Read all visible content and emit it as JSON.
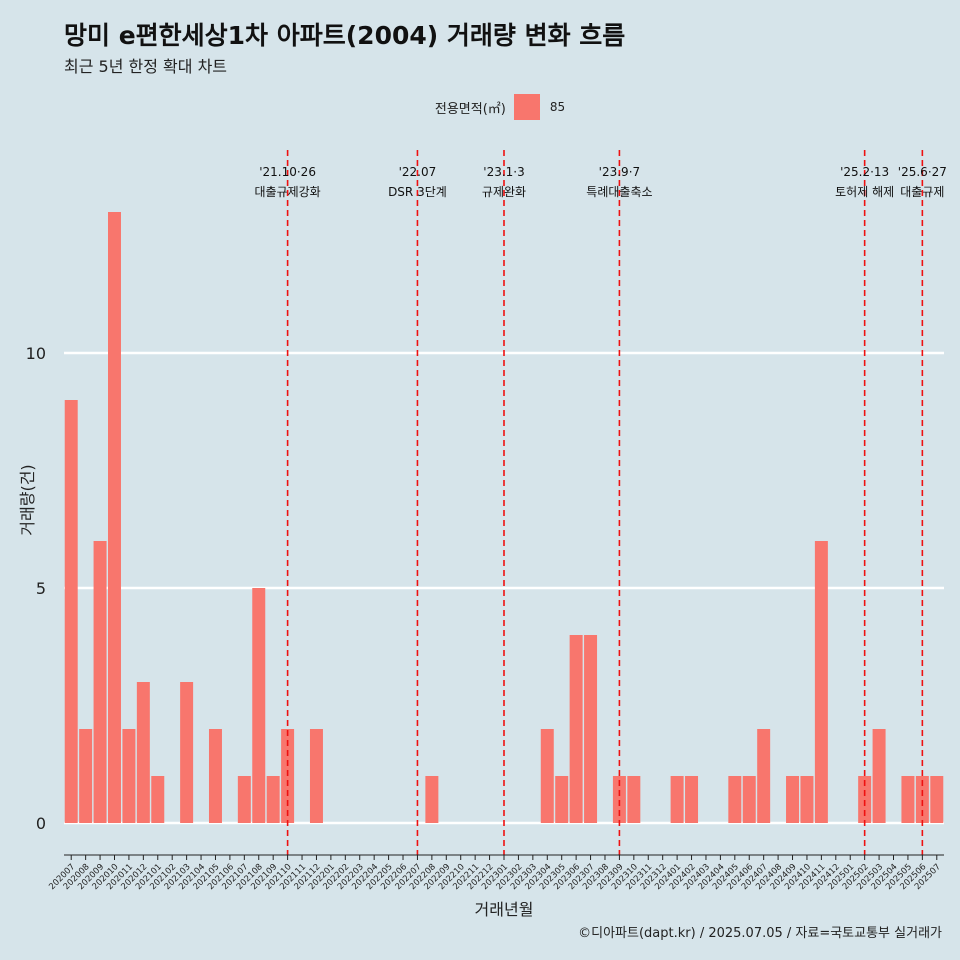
{
  "title": "망미 e편한세상1차 아파트(2004) 거래량 변화 흐름",
  "subtitle": "최근 5년 한정 확대 차트",
  "legend": {
    "title": "전용면적(㎡)",
    "label": "85",
    "color": "#f8766d"
  },
  "caption": "©디아파트(dapt.kr) / 2025.07.05 / 자료=국토교통부 실거래가",
  "chart_data": {
    "type": "bar",
    "title": "망미 e편한세상1차 아파트(2004) 거래량 변화 흐름",
    "xlabel": "거래년월",
    "ylabel": "거래량(건)",
    "ylim": [
      0,
      14
    ],
    "yticks": [
      0,
      5,
      10
    ],
    "grid": true,
    "legend_position": "top",
    "bar_color": "#f8766d",
    "categories": [
      "202007",
      "202008",
      "202009",
      "202010",
      "202011",
      "202012",
      "202101",
      "202102",
      "202103",
      "202104",
      "202105",
      "202106",
      "202107",
      "202108",
      "202109",
      "202110",
      "202111",
      "202112",
      "202201",
      "202202",
      "202203",
      "202204",
      "202205",
      "202206",
      "202207",
      "202208",
      "202209",
      "202210",
      "202211",
      "202212",
      "202301",
      "202302",
      "202303",
      "202304",
      "202305",
      "202306",
      "202307",
      "202308",
      "202309",
      "202310",
      "202311",
      "202312",
      "202401",
      "202402",
      "202403",
      "202404",
      "202405",
      "202406",
      "202407",
      "202408",
      "202409",
      "202410",
      "202411",
      "202412",
      "202501",
      "202502",
      "202503",
      "202504",
      "202505",
      "202506",
      "202507"
    ],
    "series": [
      {
        "name": "85",
        "values": [
          9,
          2,
          6,
          13,
          2,
          3,
          1,
          0,
          3,
          0,
          2,
          0,
          1,
          5,
          1,
          2,
          0,
          2,
          0,
          0,
          0,
          0,
          0,
          0,
          0,
          1,
          0,
          0,
          0,
          0,
          0,
          0,
          0,
          2,
          1,
          4,
          4,
          0,
          1,
          1,
          0,
          0,
          1,
          1,
          0,
          0,
          1,
          1,
          2,
          0,
          1,
          1,
          6,
          0,
          0,
          1,
          2,
          0,
          1,
          1,
          1
        ]
      }
    ],
    "annotations": [
      {
        "category": "202110",
        "date": "'21.10·26",
        "label": "대출규제강화"
      },
      {
        "category": "202207",
        "date": "'22.07",
        "label": "DSR 3단계"
      },
      {
        "category": "202301",
        "date": "'23.1·3",
        "label": "규제완화"
      },
      {
        "category": "202309",
        "date": "'23.9·7",
        "label": "특례대출축소"
      },
      {
        "category": "202502",
        "date": "'25.2·13",
        "label": "토허제 해제"
      },
      {
        "category": "202506",
        "date": "'25.6·27",
        "label": "대출규제"
      }
    ]
  }
}
